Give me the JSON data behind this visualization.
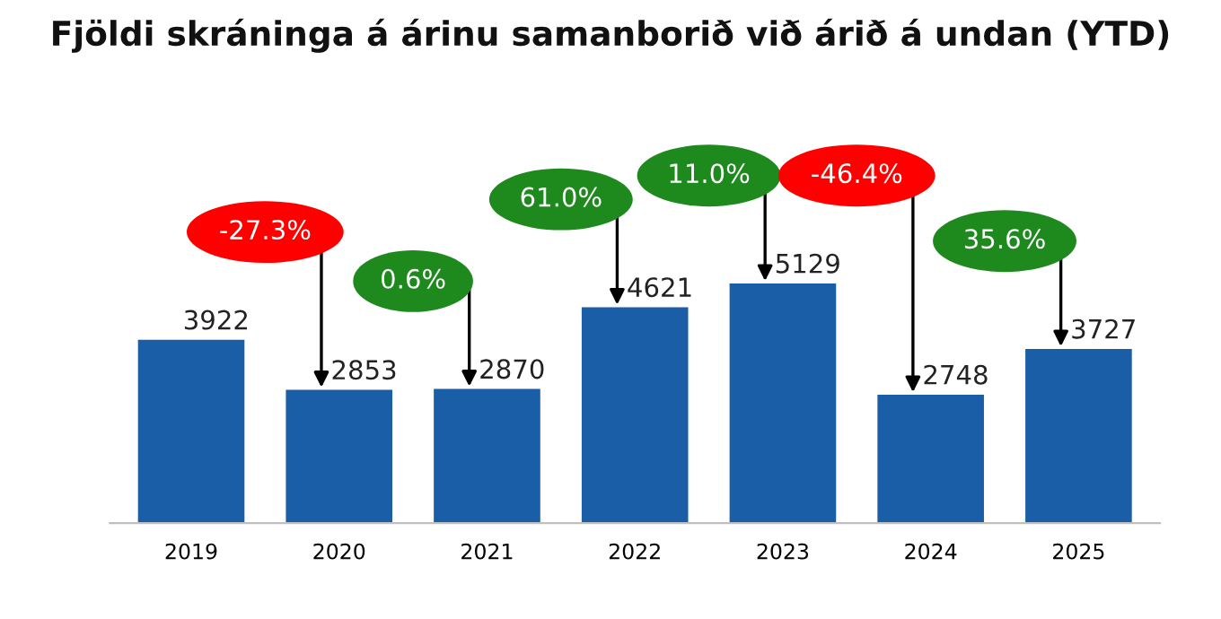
{
  "chart_data": {
    "type": "bar",
    "title": "Fjöldi skráninga á árinu samanborið við árið á undan (YTD)",
    "categories": [
      "2019",
      "2020",
      "2021",
      "2022",
      "2023",
      "2024",
      "2025"
    ],
    "values": [
      3922,
      2853,
      2870,
      4621,
      5129,
      2748,
      3727
    ],
    "color": "#1a5ea8",
    "data_labels": true,
    "grid": false,
    "annotations": [
      "-27.3%",
      "0.6%",
      "61.0%",
      "11.0%",
      "-46.4%",
      "35.6%"
    ]
  }
}
